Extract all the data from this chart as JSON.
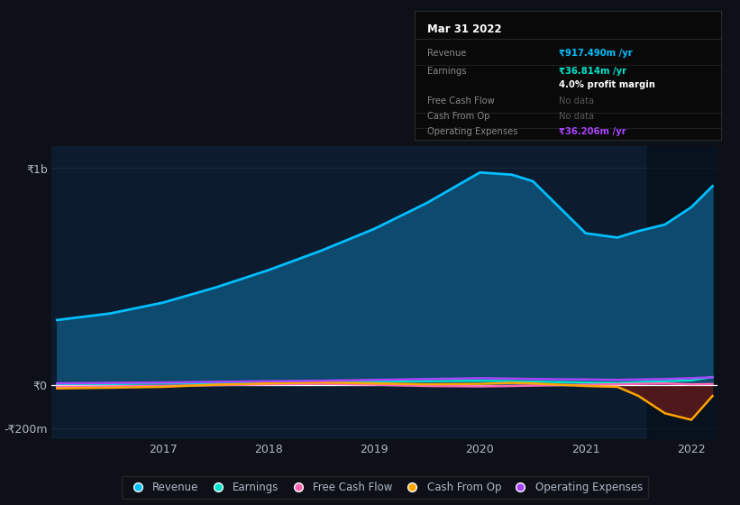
{
  "background_color": "#0d1117",
  "plot_bg_color": "#0d1b2e",
  "years": [
    2016.0,
    2016.5,
    2017.0,
    2017.5,
    2018.0,
    2018.5,
    2019.0,
    2019.5,
    2020.0,
    2020.3,
    2020.5,
    2021.0,
    2021.3,
    2021.5,
    2021.75,
    2022.0,
    2022.2
  ],
  "revenue": [
    300,
    330,
    380,
    450,
    530,
    620,
    720,
    840,
    980,
    970,
    940,
    700,
    680,
    710,
    740,
    820,
    917
  ],
  "earnings": [
    5,
    5,
    8,
    10,
    12,
    14,
    16,
    18,
    20,
    18,
    16,
    12,
    10,
    14,
    18,
    22,
    37
  ],
  "free_cash_flow": [
    -8,
    -6,
    -4,
    0,
    4,
    6,
    2,
    -4,
    -6,
    -4,
    -2,
    2,
    4,
    6,
    8,
    4,
    5
  ],
  "cash_from_op": [
    -15,
    -12,
    -8,
    2,
    8,
    12,
    8,
    4,
    6,
    10,
    8,
    -4,
    -8,
    -50,
    -130,
    -160,
    -50
  ],
  "operating_expenses": [
    8,
    10,
    12,
    15,
    18,
    20,
    24,
    28,
    32,
    30,
    28,
    26,
    24,
    26,
    28,
    32,
    36
  ],
  "revenue_color": "#00bfff",
  "revenue_fill_color": "#0d4a6e",
  "earnings_color": "#00e5cc",
  "free_cash_flow_color": "#ff69b4",
  "cash_from_op_color": "#ffa500",
  "operating_expenses_color": "#aa44ff",
  "cash_from_op_neg_fill": "#5c1a1a",
  "ylim_low": -250,
  "ylim_high": 1100,
  "ytick_vals": [
    -200,
    0,
    1000
  ],
  "ytick_labels": [
    "-₹200m",
    "₹0",
    "₹1b"
  ],
  "xtick_vals": [
    2017,
    2018,
    2019,
    2020,
    2021,
    2022
  ],
  "grid_color": "#1e2d3d",
  "text_color": "#b0b8c8",
  "dark_overlay_start": 2021.58,
  "legend_items": [
    "Revenue",
    "Earnings",
    "Free Cash Flow",
    "Cash From Op",
    "Operating Expenses"
  ],
  "legend_colors": [
    "#00bfff",
    "#00e5cc",
    "#ff69b4",
    "#ffa500",
    "#aa44ff"
  ],
  "info_box": {
    "title": "Mar 31 2022",
    "rows": [
      {
        "label": "Revenue",
        "value": "₹917.490m /yr",
        "value_color": "#00bfff",
        "nodata": false
      },
      {
        "label": "Earnings",
        "value": "₹36.814m /yr",
        "value_color": "#00e5cc",
        "nodata": false
      },
      {
        "label": "",
        "value": "4.0% profit margin",
        "value_color": "#ffffff",
        "nodata": false
      },
      {
        "label": "Free Cash Flow",
        "value": "No data",
        "value_color": "#555555",
        "nodata": true
      },
      {
        "label": "Cash From Op",
        "value": "No data",
        "value_color": "#555555",
        "nodata": true
      },
      {
        "label": "Operating Expenses",
        "value": "₹36.206m /yr",
        "value_color": "#aa44ff",
        "nodata": false
      }
    ],
    "bg_color": "#090909",
    "border_color": "#2a2a2a",
    "label_color": "#888888",
    "title_color": "#ffffff"
  }
}
